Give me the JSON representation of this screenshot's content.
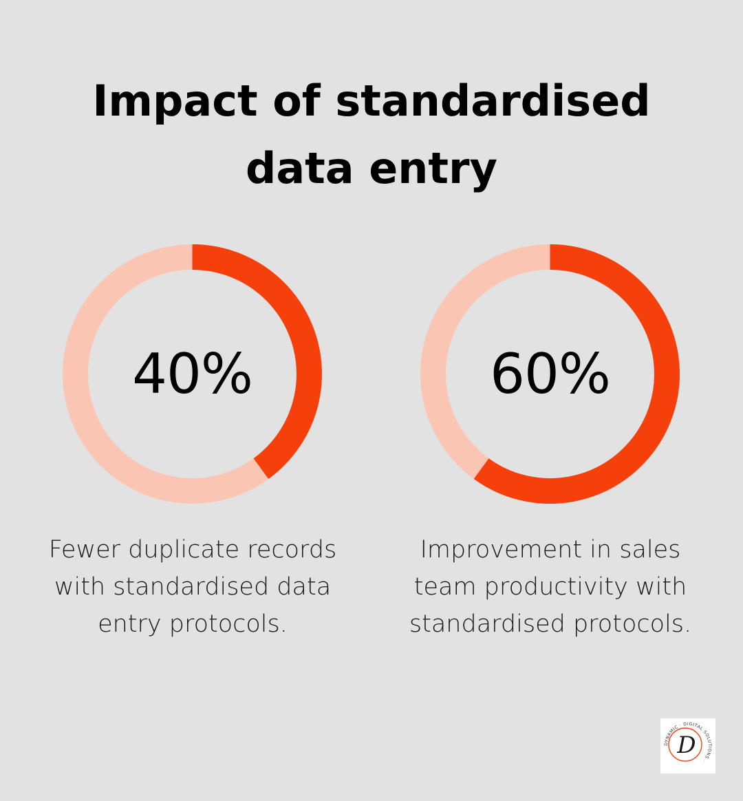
{
  "title_lines": [
    "Impact of standardised",
    "data entry"
  ],
  "colors": {
    "background": "#e1e2e1",
    "accent": "#f5400c",
    "track": "#fbc5b4"
  },
  "chart_data": [
    {
      "type": "pie",
      "value": 40,
      "max": 100,
      "label": "40%",
      "caption_lines": [
        "Fewer duplicate records",
        "with standardised data",
        "entry protocols."
      ]
    },
    {
      "type": "pie",
      "value": 60,
      "max": 100,
      "label": "60%",
      "caption_lines": [
        "Improvement in sales",
        "team productivity with",
        "standardised protocols."
      ]
    }
  ],
  "logo": {
    "monogram": "D",
    "ring_text": "DYNAMIC · DIGITAL SOLUTIONS ·"
  }
}
